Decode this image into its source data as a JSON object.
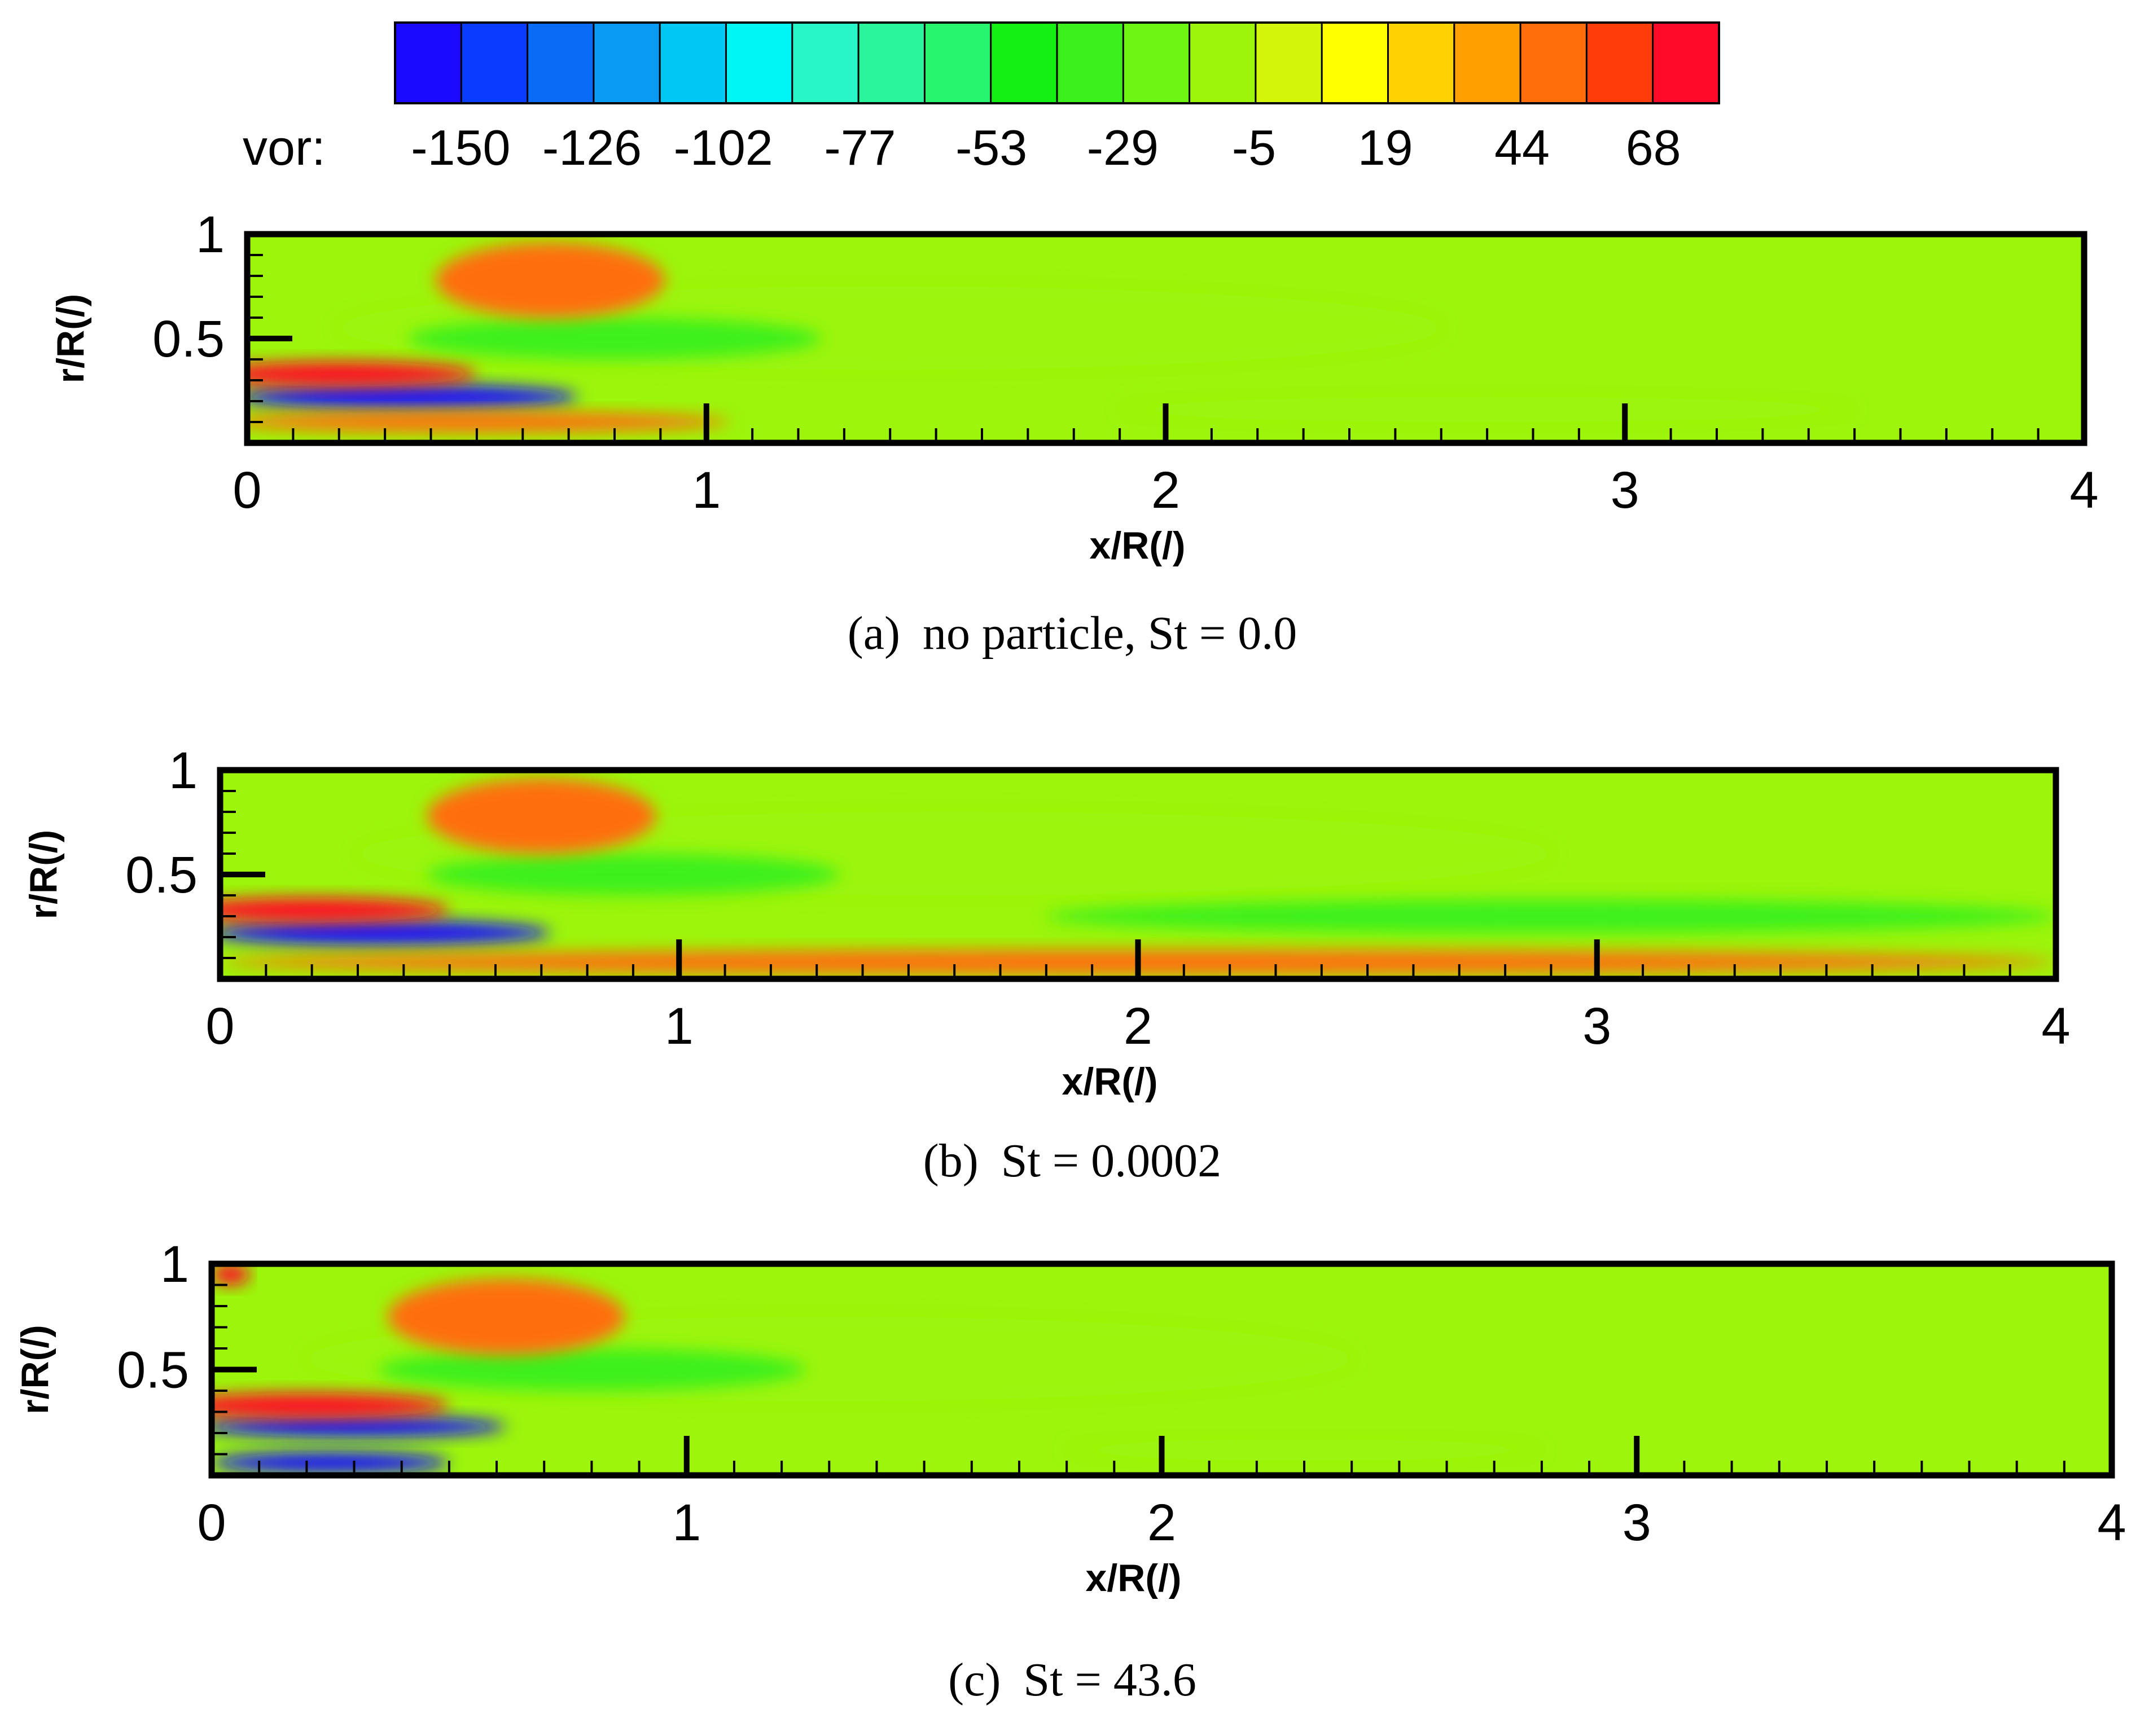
{
  "chart_data": {
    "type": "heatmap",
    "colorbar": {
      "label": "vor:",
      "tick_labels": [
        "-150",
        "-126",
        "-102",
        "-77",
        "-53",
        "-29",
        "-5",
        "19",
        "44",
        "68"
      ],
      "tick_values": [
        -150,
        -126,
        -102,
        -77,
        -53,
        -29,
        -5,
        19,
        44,
        68
      ],
      "range": [
        -162,
        80
      ],
      "colors": [
        "#1a0aff",
        "#0a3cff",
        "#0a6bf5",
        "#0a9cf5",
        "#00c8f5",
        "#00f5f5",
        "#28f5c8",
        "#28f59c",
        "#28f56e",
        "#14f014",
        "#3cf01e",
        "#6ef514",
        "#9cf50a",
        "#d2f50a",
        "#ffff00",
        "#ffd200",
        "#ffa000",
        "#ff6e0a",
        "#ff3c0a",
        "#ff0a28"
      ]
    },
    "panels": [
      {
        "id": "a",
        "caption_label": "(a)",
        "caption": "no particle, St = 0.0",
        "xlabel": "x/R(/)",
        "ylabel": "r/R(/)",
        "xlim": [
          0,
          4
        ],
        "ylim": [
          0,
          1
        ],
        "xticks": [
          "0",
          "1",
          "2",
          "3",
          "4"
        ],
        "yticks": [
          "0.5",
          "1"
        ],
        "regions": [
          {
            "cx": 1.4,
            "cy": 0.55,
            "rx": 1.2,
            "ry": 0.2,
            "level": -15
          },
          {
            "cx": 2.7,
            "cy": 0.16,
            "rx": 0.8,
            "ry": 0.06,
            "level": -15
          },
          {
            "cx": 0.8,
            "cy": 0.5,
            "rx": 0.45,
            "ry": 0.1,
            "level": -29
          },
          {
            "cx": 0.35,
            "cy": 0.22,
            "rx": 0.37,
            "ry": 0.06,
            "level": -150
          },
          {
            "cx": 0.5,
            "cy": 0.1,
            "rx": 0.55,
            "ry": 0.05,
            "level": 44
          },
          {
            "cx": 0.2,
            "cy": 0.33,
            "rx": 0.3,
            "ry": 0.06,
            "level": 68
          },
          {
            "cx": 0.66,
            "cy": 0.78,
            "rx": 0.25,
            "ry": 0.18,
            "level": 44
          }
        ]
      },
      {
        "id": "b",
        "caption_label": "(b)",
        "caption": "St = 0.0002",
        "xlabel": "x/R(/)",
        "ylabel": "r/R(/)",
        "xlim": [
          0,
          4
        ],
        "ylim": [
          0,
          1
        ],
        "xticks": [
          "0",
          "1",
          "2",
          "3",
          "4"
        ],
        "yticks": [
          "0.5",
          "1"
        ],
        "regions": [
          {
            "cx": 1.6,
            "cy": 0.6,
            "rx": 1.3,
            "ry": 0.2,
            "level": -15
          },
          {
            "cx": 2.9,
            "cy": 0.3,
            "rx": 1.1,
            "ry": 0.08,
            "level": -29
          },
          {
            "cx": 0.9,
            "cy": 0.5,
            "rx": 0.45,
            "ry": 0.1,
            "level": -29
          },
          {
            "cx": 0.35,
            "cy": 0.22,
            "rx": 0.37,
            "ry": 0.06,
            "level": -150
          },
          {
            "cx": 2.0,
            "cy": 0.08,
            "rx": 2.0,
            "ry": 0.06,
            "level": 44
          },
          {
            "cx": 0.2,
            "cy": 0.33,
            "rx": 0.3,
            "ry": 0.06,
            "level": 68
          },
          {
            "cx": 0.7,
            "cy": 0.78,
            "rx": 0.25,
            "ry": 0.18,
            "level": 44
          }
        ]
      },
      {
        "id": "c",
        "caption_label": "(c)",
        "caption": "St = 43.6",
        "xlabel": "x/R(/)",
        "ylabel": "r/R(/)",
        "xlim": [
          0,
          4
        ],
        "ylim": [
          0,
          1
        ],
        "xticks": [
          "0",
          "1",
          "2",
          "3",
          "4"
        ],
        "yticks": [
          "0.5",
          "1"
        ],
        "regions": [
          {
            "cx": 1.3,
            "cy": 0.55,
            "rx": 1.1,
            "ry": 0.2,
            "level": -15
          },
          {
            "cx": 2.3,
            "cy": 0.12,
            "rx": 0.5,
            "ry": 0.05,
            "level": -15
          },
          {
            "cx": 0.8,
            "cy": 0.5,
            "rx": 0.45,
            "ry": 0.1,
            "level": -29
          },
          {
            "cx": 0.3,
            "cy": 0.23,
            "rx": 0.32,
            "ry": 0.05,
            "level": -150
          },
          {
            "cx": 0.25,
            "cy": 0.06,
            "rx": 0.25,
            "ry": 0.05,
            "level": -150
          },
          {
            "cx": 0.2,
            "cy": 0.33,
            "rx": 0.3,
            "ry": 0.06,
            "level": 68
          },
          {
            "cx": 0.62,
            "cy": 0.75,
            "rx": 0.25,
            "ry": 0.18,
            "level": 44
          },
          {
            "cx": 0.04,
            "cy": 0.95,
            "rx": 0.04,
            "ry": 0.05,
            "level": 68
          }
        ]
      }
    ]
  }
}
